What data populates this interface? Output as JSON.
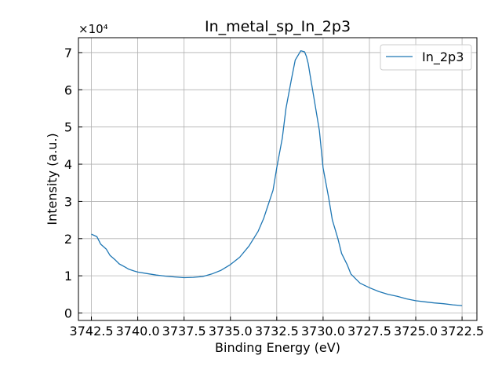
{
  "chart_data": {
    "type": "line",
    "title": "In_metal_sp_In_2p3",
    "xlabel": "Binding Energy (eV)",
    "ylabel": "Intensity (a.u.)",
    "y_offset_text": "×10⁴",
    "y_offset_multiplier": 10000,
    "xlim": [
      3743.2,
      3721.7
    ],
    "ylim": [
      -0.2,
      7.4
    ],
    "x_inverted": true,
    "grid": true,
    "legend_position": "top-right",
    "x_ticks": [
      3742.5,
      3740.0,
      3737.5,
      3735.0,
      3732.5,
      3730.0,
      3727.5,
      3725.0,
      3722.5
    ],
    "x_tick_labels": [
      "3742.5",
      "3740.0",
      "3737.5",
      "3735.0",
      "3732.5",
      "3730.0",
      "3727.5",
      "3725.0",
      "3722.5"
    ],
    "y_ticks": [
      0,
      1,
      2,
      3,
      4,
      5,
      6,
      7
    ],
    "y_tick_labels": [
      "0",
      "1",
      "2",
      "3",
      "4",
      "5",
      "6",
      "7"
    ],
    "series": [
      {
        "name": "In_2p3",
        "color": "#1f77b4",
        "x": [
          3742.5,
          3742.2,
          3742.0,
          3741.7,
          3741.5,
          3741.2,
          3741.0,
          3740.7,
          3740.5,
          3740.2,
          3740.0,
          3739.5,
          3739.0,
          3738.5,
          3738.0,
          3737.5,
          3737.0,
          3736.5,
          3736.0,
          3735.5,
          3735.0,
          3734.5,
          3734.0,
          3733.5,
          3733.2,
          3733.0,
          3732.7,
          3732.5,
          3732.2,
          3732.0,
          3731.7,
          3731.5,
          3731.2,
          3731.0,
          3730.9,
          3730.8,
          3730.7,
          3730.5,
          3730.2,
          3730.0,
          3729.7,
          3729.5,
          3729.2,
          3729.0,
          3728.7,
          3728.5,
          3728.2,
          3728.0,
          3727.5,
          3727.0,
          3726.5,
          3726.0,
          3725.5,
          3725.0,
          3724.5,
          3724.0,
          3723.5,
          3723.0,
          3722.5
        ],
        "values": [
          2.12,
          2.05,
          1.85,
          1.72,
          1.55,
          1.42,
          1.32,
          1.24,
          1.18,
          1.13,
          1.1,
          1.06,
          1.02,
          0.99,
          0.97,
          0.95,
          0.96,
          0.98,
          1.05,
          1.15,
          1.3,
          1.5,
          1.8,
          2.2,
          2.55,
          2.85,
          3.3,
          3.9,
          4.7,
          5.5,
          6.3,
          6.8,
          7.05,
          7.02,
          6.9,
          6.7,
          6.4,
          5.8,
          4.9,
          3.9,
          3.1,
          2.5,
          2.0,
          1.6,
          1.3,
          1.05,
          0.9,
          0.8,
          0.68,
          0.58,
          0.5,
          0.45,
          0.38,
          0.33,
          0.3,
          0.27,
          0.25,
          0.22,
          0.2
        ]
      }
    ]
  }
}
